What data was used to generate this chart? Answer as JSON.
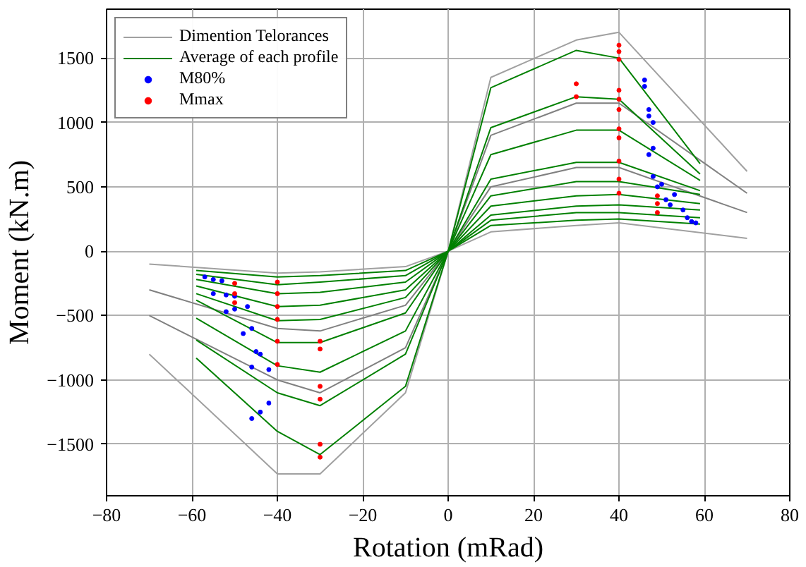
{
  "chart_data": {
    "type": "line",
    "xlabel": "Rotation (mRad)",
    "ylabel": "Moment (kN.m)",
    "xlim": [
      -80,
      80
    ],
    "ylim": [
      -1900,
      1880
    ],
    "xticks": [
      {
        "value": -80,
        "label": "−80"
      },
      {
        "value": -60,
        "label": "−60"
      },
      {
        "value": -40,
        "label": "−40"
      },
      {
        "value": -20,
        "label": "−20"
      },
      0,
      20,
      40,
      60,
      80
    ],
    "yticks": [
      {
        "value": -1500,
        "label": "−1500"
      },
      {
        "value": -1000,
        "label": "−1000"
      },
      {
        "value": -500,
        "label": "−500"
      },
      0,
      500,
      1000,
      1500
    ],
    "grid": true,
    "legend": "top left",
    "line_style": "solid",
    "series": [
      {
        "name": "Dimention Telorances",
        "color": "#a0a0a0",
        "x": [
          -70,
          -40,
          -30,
          -10,
          0,
          10,
          30,
          40,
          70
        ],
        "values": [
          -800,
          -1730,
          -1730,
          -1100,
          0,
          1350,
          1640,
          1700,
          620
        ]
      },
      {
        "color": "#a0a0a0",
        "x": [
          -70,
          -40,
          -30,
          -10,
          0,
          10,
          30,
          40,
          70
        ],
        "values": [
          -100,
          -170,
          -160,
          -120,
          0,
          150,
          200,
          220,
          100
        ]
      },
      {
        "color": "#808080",
        "x": [
          -70,
          -40,
          -30,
          -10,
          0,
          10,
          30,
          40,
          70
        ],
        "values": [
          -500,
          -1000,
          -1100,
          -750,
          0,
          900,
          1150,
          1150,
          450
        ]
      },
      {
        "color": "#808080",
        "x": [
          -70,
          -40,
          -30,
          -10,
          0,
          10,
          30,
          40,
          70
        ],
        "values": [
          -300,
          -600,
          -620,
          -420,
          0,
          500,
          650,
          650,
          300
        ]
      },
      {
        "name": "Average of each profile",
        "color": "#008000",
        "x": [
          -59,
          -40,
          -30,
          -10,
          0,
          10,
          30,
          40,
          59
        ],
        "values": [
          -830,
          -1400,
          -1580,
          -1050,
          0,
          1270,
          1560,
          1500,
          680
        ]
      },
      {
        "color": "#008000",
        "x": [
          -59,
          -40,
          -30,
          -10,
          0,
          10,
          30,
          40,
          59
        ],
        "values": [
          -690,
          -1100,
          -1200,
          -800,
          0,
          960,
          1200,
          1180,
          600
        ]
      },
      {
        "color": "#008000",
        "x": [
          -59,
          -40,
          -30,
          -10,
          0,
          10,
          30,
          40,
          59
        ],
        "values": [
          -520,
          -890,
          -940,
          -620,
          0,
          750,
          940,
          940,
          550
        ]
      },
      {
        "color": "#008000",
        "x": [
          -59,
          -40,
          -30,
          -10,
          0,
          10,
          30,
          40,
          59
        ],
        "values": [
          -380,
          -710,
          -710,
          -480,
          0,
          560,
          690,
          690,
          470
        ]
      },
      {
        "color": "#008000",
        "x": [
          -59,
          -40,
          -30,
          -10,
          0,
          10,
          30,
          40,
          59
        ],
        "values": [
          -330,
          -540,
          -530,
          -360,
          0,
          430,
          540,
          540,
          440
        ]
      },
      {
        "color": "#008000",
        "x": [
          -59,
          -40,
          -30,
          -10,
          0,
          10,
          30,
          40,
          59
        ],
        "values": [
          -270,
          -430,
          -420,
          -300,
          0,
          350,
          430,
          440,
          370
        ]
      },
      {
        "color": "#008000",
        "x": [
          -59,
          -40,
          -30,
          -10,
          0,
          10,
          30,
          40,
          59
        ],
        "values": [
          -220,
          -330,
          -320,
          -240,
          0,
          280,
          350,
          360,
          320
        ]
      },
      {
        "color": "#008000",
        "x": [
          -59,
          -40,
          -30,
          -10,
          0,
          10,
          30,
          40,
          59
        ],
        "values": [
          -180,
          -260,
          -240,
          -190,
          0,
          240,
          300,
          300,
          260
        ]
      },
      {
        "color": "#008000",
        "x": [
          -59,
          -40,
          -30,
          -10,
          0,
          10,
          30,
          40,
          59
        ],
        "values": [
          -150,
          -200,
          -190,
          -150,
          0,
          200,
          240,
          250,
          210
        ]
      },
      {
        "name": "M80%",
        "type": "scatter",
        "marker": "circle",
        "color": "#0000ff",
        "x": [
          46,
          46,
          47,
          47,
          48,
          48,
          47,
          49,
          50,
          48,
          51,
          53,
          52,
          55,
          56,
          57,
          58,
          -57,
          -55,
          -53,
          -55,
          -52,
          -50,
          -52,
          -50,
          -47,
          -46,
          -48,
          -45,
          -44,
          -46,
          -42,
          -44,
          -42,
          -46
        ],
        "values": [
          1280,
          1330,
          1050,
          1100,
          1000,
          800,
          750,
          500,
          520,
          580,
          400,
          440,
          360,
          320,
          260,
          230,
          220,
          -200,
          -220,
          -230,
          -330,
          -340,
          -350,
          -470,
          -450,
          -430,
          -600,
          -640,
          -780,
          -800,
          -900,
          -920,
          -1250,
          -1180,
          -1300
        ]
      },
      {
        "name": "Mmax",
        "type": "scatter",
        "marker": "circle",
        "color": "#ff0000",
        "x": [
          40,
          40,
          40,
          40,
          40,
          40,
          40,
          40,
          40,
          40,
          40,
          30,
          30,
          49,
          49,
          49,
          -40,
          -40,
          -40,
          -40,
          -40,
          -40,
          -30,
          -30,
          -30,
          -30,
          -30,
          -30,
          -50,
          -50,
          -50
        ],
        "values": [
          1490,
          1550,
          1600,
          1250,
          1180,
          1100,
          950,
          880,
          700,
          560,
          450,
          1300,
          1200,
          430,
          370,
          300,
          -240,
          -330,
          -430,
          -530,
          -700,
          -880,
          -700,
          -760,
          -1050,
          -1150,
          -1500,
          -1600,
          -250,
          -330,
          -400
        ]
      }
    ]
  }
}
